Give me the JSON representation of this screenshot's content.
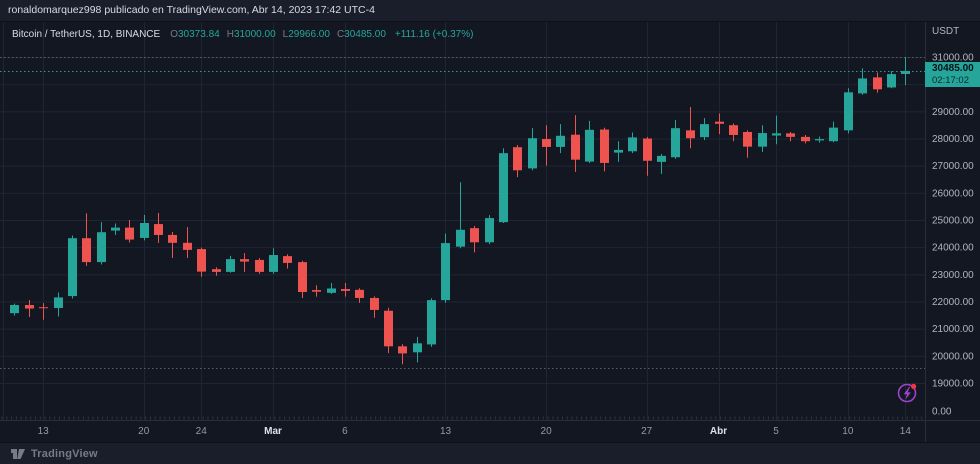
{
  "topbar": {
    "text": "ronaldomarquez998 publicado en TradingView.com, Abr 14, 2023 17:42 UTC-4"
  },
  "legend": {
    "symbol": "Bitcoin / TetherUS, 1D, BINANCE",
    "o_label": "O",
    "o": "30373.84",
    "h_label": "H",
    "h": "31000.00",
    "l_label": "L",
    "l": "29966.00",
    "c_label": "C",
    "c": "30485.00",
    "change": "+111.16 (+0.37%)"
  },
  "price_axis": {
    "currency": "USDT",
    "last_price": "30485.00",
    "countdown": "02:17:02",
    "ticks": [
      "31000.00",
      "29000.00",
      "28000.00",
      "27000.00",
      "26000.00",
      "25000.00",
      "24000.00",
      "23000.00",
      "22000.00",
      "21000.00",
      "20000.00",
      "19000.00",
      "0.00"
    ]
  },
  "time_axis": {
    "ticks": [
      {
        "label": "13",
        "i": 2
      },
      {
        "label": "20",
        "i": 9
      },
      {
        "label": "24",
        "i": 13
      },
      {
        "label": "Mar",
        "i": 18,
        "month": true
      },
      {
        "label": "6",
        "i": 23
      },
      {
        "label": "13",
        "i": 30
      },
      {
        "label": "20",
        "i": 37
      },
      {
        "label": "27",
        "i": 44
      },
      {
        "label": "Abr",
        "i": 49,
        "month": true
      },
      {
        "label": "5",
        "i": 53
      },
      {
        "label": "10",
        "i": 58
      },
      {
        "label": "14",
        "i": 62
      }
    ]
  },
  "footer": {
    "brand": "TradingView"
  },
  "flash_button": {
    "has_notification": true
  },
  "colors": {
    "background": "#131722",
    "panel": "#1a1e2a",
    "up": "#26a69a",
    "down": "#ef5350",
    "grid": "#1f2534",
    "border": "#2a2e39",
    "axis_text": "#b2b5be",
    "dim_text": "#787b86",
    "bright_text": "#dde1ea",
    "time_text": "#959aa5",
    "label_text": "#07121c",
    "price_line": "#2f9e8f",
    "range_line": "#565d6c",
    "minor_tick": "#2f3542",
    "accent_purple": "#9f43cf",
    "alert_red": "#f23645"
  },
  "chart_data": {
    "type": "candlestick",
    "title": "Bitcoin / TetherUS",
    "interval": "1D",
    "exchange": "BINANCE",
    "currency": "USDT",
    "last": {
      "open": 30373.84,
      "high": 31000.0,
      "low": 29966.0,
      "close": 30485.0,
      "change": 111.16,
      "change_pct": 0.37
    },
    "visible_price_range": [
      17640,
      31550
    ],
    "grid_step": 1000,
    "price_lines": [
      {
        "price": 31000,
        "style": "dashed",
        "color_key": "range_line"
      },
      {
        "price": 30485,
        "style": "dashed",
        "color_key": "price_line"
      },
      {
        "price": 19550,
        "style": "dashed",
        "color_key": "range_line"
      }
    ],
    "candles": [
      [
        "2023-02-11",
        21570,
        21920,
        21480,
        21870
      ],
      [
        "2023-02-12",
        21870,
        22060,
        21430,
        21740
      ],
      [
        "2023-02-13",
        21790,
        21940,
        21330,
        21760
      ],
      [
        "2023-02-14",
        21760,
        22330,
        21450,
        22150
      ],
      [
        "2023-02-15",
        22200,
        24430,
        22110,
        24330
      ],
      [
        "2023-02-16",
        24330,
        25250,
        23310,
        23450
      ],
      [
        "2023-02-17",
        23450,
        24920,
        23360,
        24550
      ],
      [
        "2023-02-18",
        24610,
        24870,
        24450,
        24720
      ],
      [
        "2023-02-19",
        24720,
        25000,
        24170,
        24280
      ],
      [
        "2023-02-20",
        24340,
        25190,
        24250,
        24890
      ],
      [
        "2023-02-21",
        24850,
        25260,
        24160,
        24450
      ],
      [
        "2023-02-22",
        24450,
        24560,
        23600,
        24160
      ],
      [
        "2023-02-23",
        24160,
        24740,
        23600,
        23900
      ],
      [
        "2023-02-24",
        23930,
        23990,
        22910,
        23100
      ],
      [
        "2023-02-25",
        23190,
        23260,
        22950,
        23090
      ],
      [
        "2023-02-26",
        23090,
        23680,
        23060,
        23560
      ],
      [
        "2023-02-27",
        23560,
        23780,
        23090,
        23470
      ],
      [
        "2023-02-28",
        23530,
        23600,
        23020,
        23090
      ],
      [
        "2023-03-01",
        23090,
        23960,
        23020,
        23710
      ],
      [
        "2023-03-02",
        23670,
        23740,
        23210,
        23420
      ],
      [
        "2023-03-03",
        23450,
        23500,
        22130,
        22350
      ],
      [
        "2023-03-04",
        22420,
        22600,
        22180,
        22360
      ],
      [
        "2023-03-05",
        22320,
        22680,
        22280,
        22480
      ],
      [
        "2023-03-06",
        22460,
        22680,
        22180,
        22390
      ],
      [
        "2023-03-07",
        22430,
        22490,
        21950,
        22130
      ],
      [
        "2023-03-08",
        22130,
        22190,
        21400,
        21690
      ],
      [
        "2023-03-09",
        21660,
        21770,
        20100,
        20350
      ],
      [
        "2023-03-10",
        20350,
        20430,
        19690,
        20090
      ],
      [
        "2023-03-11",
        20130,
        20700,
        19760,
        20460
      ],
      [
        "2023-03-12",
        20420,
        22120,
        20330,
        22050
      ],
      [
        "2023-03-13",
        22050,
        24500,
        21950,
        24150
      ],
      [
        "2023-03-14",
        24020,
        26390,
        23960,
        24640
      ],
      [
        "2023-03-15",
        24700,
        24780,
        23810,
        24180
      ],
      [
        "2023-03-16",
        24180,
        25180,
        24110,
        25070
      ],
      [
        "2023-03-17",
        24920,
        27640,
        24890,
        27460
      ],
      [
        "2023-03-18",
        27680,
        27760,
        26580,
        26830
      ],
      [
        "2023-03-19",
        26900,
        28380,
        26830,
        28010
      ],
      [
        "2023-03-20",
        27980,
        28490,
        27000,
        27690
      ],
      [
        "2023-03-21",
        27690,
        28530,
        27460,
        28100
      ],
      [
        "2023-03-22",
        28140,
        28860,
        26770,
        27220
      ],
      [
        "2023-03-23",
        27150,
        28650,
        27100,
        28320
      ],
      [
        "2023-03-24",
        28330,
        28400,
        26790,
        27100
      ],
      [
        "2023-03-25",
        27480,
        27900,
        27140,
        27580
      ],
      [
        "2023-03-26",
        27530,
        28220,
        27460,
        28040
      ],
      [
        "2023-03-27",
        28000,
        28060,
        26630,
        27180
      ],
      [
        "2023-03-28",
        27140,
        27430,
        26700,
        27360
      ],
      [
        "2023-03-29",
        27310,
        28680,
        27250,
        28380
      ],
      [
        "2023-03-30",
        28300,
        29160,
        27640,
        28010
      ],
      [
        "2023-03-31",
        28050,
        28750,
        27940,
        28530
      ],
      [
        "2023-04-01",
        28620,
        28920,
        28160,
        28540
      ],
      [
        "2023-04-02",
        28490,
        28550,
        27900,
        28130
      ],
      [
        "2023-04-03",
        28240,
        28300,
        27290,
        27700
      ],
      [
        "2023-04-04",
        27700,
        28490,
        27500,
        28200
      ],
      [
        "2023-04-05",
        28110,
        28840,
        27790,
        28190
      ],
      [
        "2023-04-06",
        28190,
        28240,
        27900,
        28060
      ],
      [
        "2023-04-07",
        28060,
        28130,
        27820,
        27900
      ],
      [
        "2023-04-08",
        27930,
        28070,
        27850,
        27980
      ],
      [
        "2023-04-09",
        27900,
        28620,
        27860,
        28400
      ],
      [
        "2023-04-10",
        28300,
        29850,
        28190,
        29700
      ],
      [
        "2023-04-11",
        29660,
        30580,
        29610,
        30210
      ],
      [
        "2023-04-12",
        30250,
        30430,
        29690,
        29810
      ],
      [
        "2023-04-13",
        29880,
        30480,
        29850,
        30370
      ],
      [
        "2023-04-14",
        30373.84,
        31000,
        29966,
        30485
      ]
    ]
  }
}
